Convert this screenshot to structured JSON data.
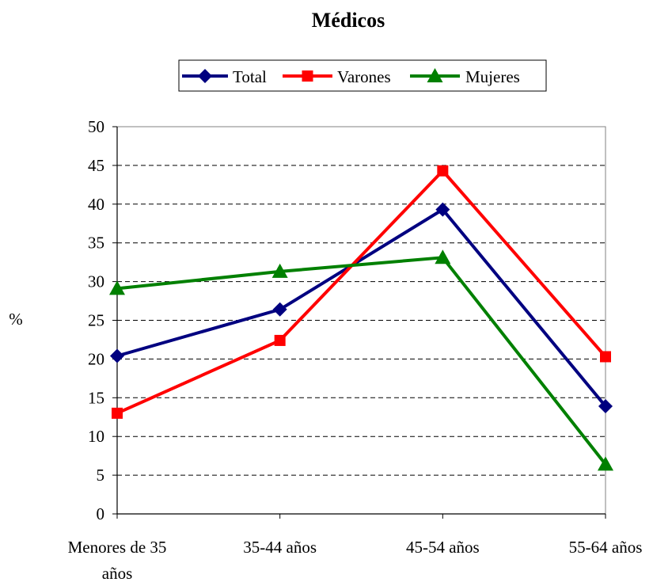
{
  "chart_data": {
    "type": "line",
    "title": "Médicos",
    "xlabel": "",
    "ylabel": "%",
    "ylim": [
      0,
      50
    ],
    "yticks": [
      0,
      5,
      10,
      15,
      20,
      25,
      30,
      35,
      40,
      45,
      50
    ],
    "grid": "horizontal dashed",
    "legend_position": "top",
    "categories": [
      "Menores de 35 años",
      "35-44 años",
      "45-54 años",
      "55-64 años"
    ],
    "category_lines": [
      [
        "Menores de 35",
        "años"
      ],
      [
        "35-44 años"
      ],
      [
        "45-54 años"
      ],
      [
        "55-64 años"
      ]
    ],
    "series": [
      {
        "name": "Total",
        "color": "#000080",
        "marker": "diamond",
        "values": [
          20.4,
          26.4,
          39.3,
          13.9
        ]
      },
      {
        "name": "Varones",
        "color": "#ff0000",
        "marker": "square",
        "values": [
          13.0,
          22.4,
          44.3,
          20.3
        ]
      },
      {
        "name": "Mujeres",
        "color": "#008000",
        "marker": "triangle",
        "values": [
          29.1,
          31.3,
          33.1,
          6.4
        ]
      }
    ]
  }
}
